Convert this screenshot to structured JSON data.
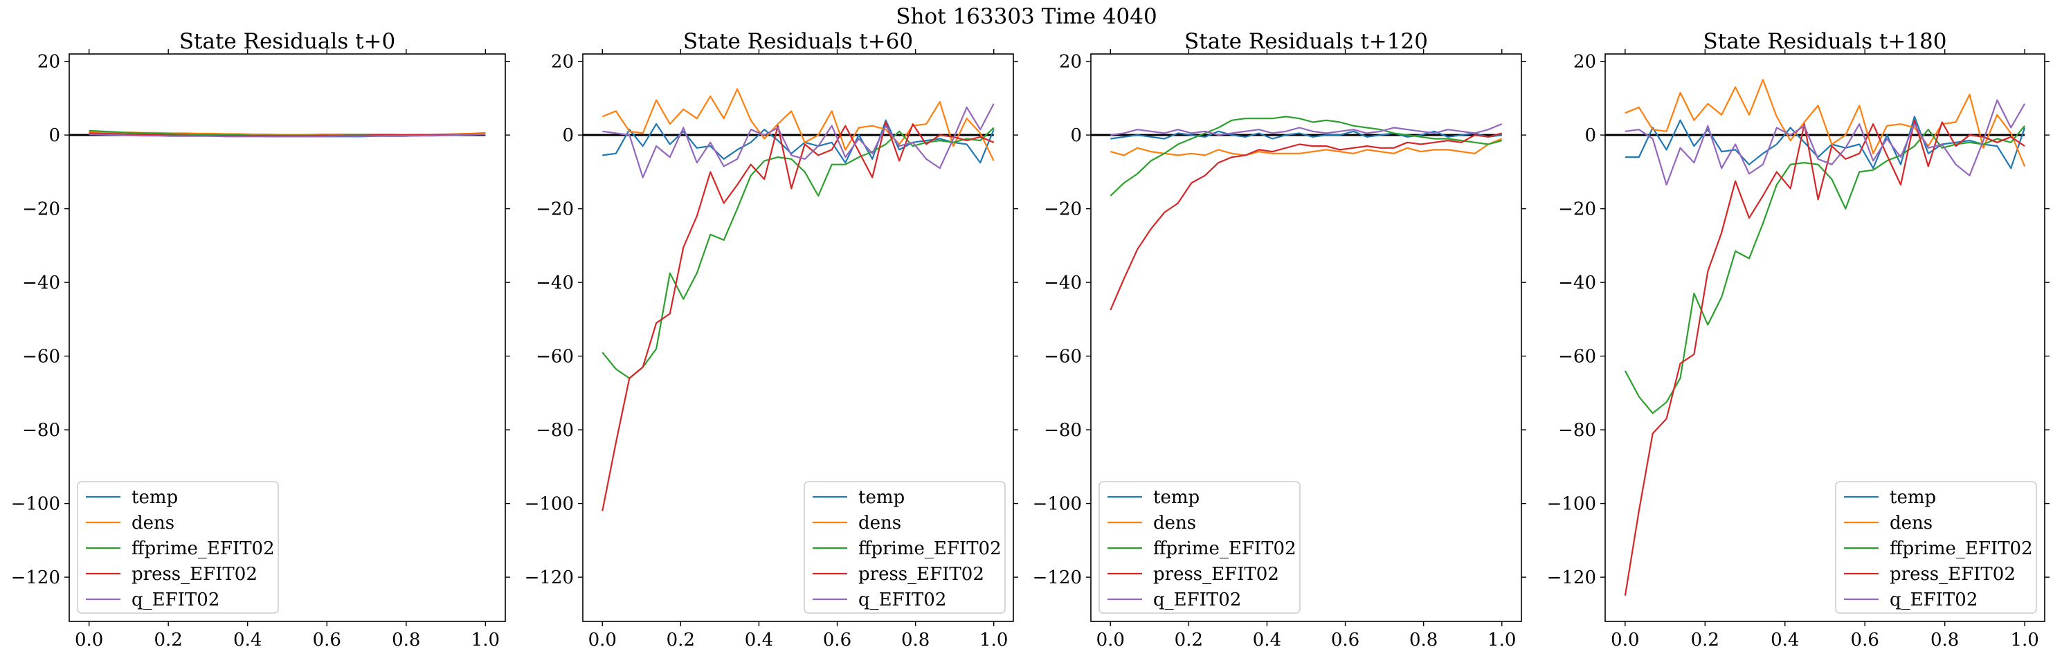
{
  "figure": {
    "suptitle": "Shot 163303   Time 4040"
  },
  "chart_data": [
    {
      "type": "line",
      "title": "State Residuals t+0",
      "xlabel": "",
      "ylabel": "",
      "xlim": [
        -0.05,
        1.05
      ],
      "ylim": [
        -132,
        22
      ],
      "xticks": [
        0.0,
        0.2,
        0.4,
        0.6,
        0.8,
        1.0
      ],
      "yticks": [
        20,
        0,
        -20,
        -40,
        -60,
        -80,
        -100,
        -120
      ],
      "grid": false,
      "legend": "lower-left",
      "x": [
        0.0,
        0.0345,
        0.069,
        0.1034,
        0.1379,
        0.1724,
        0.2069,
        0.2414,
        0.2759,
        0.3103,
        0.3448,
        0.3793,
        0.4138,
        0.4483,
        0.4828,
        0.5172,
        0.5517,
        0.5862,
        0.6207,
        0.6552,
        0.6897,
        0.7241,
        0.7586,
        0.7931,
        0.8276,
        0.8621,
        0.8966,
        0.931,
        0.9655,
        1.0
      ],
      "series": [
        {
          "name": "temp",
          "color": "#1f77b4",
          "values": [
            0.3,
            0.2,
            0.1,
            0.0,
            -0.1,
            -0.1,
            -0.2,
            -0.2,
            -0.2,
            -0.3,
            -0.3,
            -0.3,
            -0.3,
            -0.4,
            -0.4,
            -0.4,
            -0.4,
            -0.4,
            -0.4,
            -0.4,
            -0.4,
            -0.3,
            -0.3,
            -0.3,
            -0.2,
            -0.2,
            -0.1,
            0.0,
            0.1,
            0.2
          ]
        },
        {
          "name": "dens",
          "color": "#ff7f0e",
          "values": [
            0.9,
            0.8,
            0.7,
            0.7,
            0.6,
            0.6,
            0.5,
            0.5,
            0.4,
            0.4,
            0.3,
            0.3,
            0.2,
            0.2,
            0.1,
            0.1,
            0.1,
            0.0,
            0.0,
            0.0,
            0.0,
            0.0,
            0.0,
            0.1,
            0.1,
            0.1,
            0.2,
            0.3,
            0.4,
            0.6
          ]
        },
        {
          "name": "ffprime_EFIT02",
          "color": "#2ca02c",
          "values": [
            1.2,
            1.0,
            0.8,
            0.6,
            0.5,
            0.4,
            0.3,
            0.2,
            0.1,
            0.1,
            0.0,
            0.0,
            -0.1,
            -0.1,
            -0.1,
            -0.1,
            -0.1,
            -0.1,
            -0.1,
            0.0,
            0.0,
            0.0,
            0.0,
            0.0,
            0.1,
            0.1,
            0.1,
            0.1,
            0.2,
            0.2
          ]
        },
        {
          "name": "press_EFIT02",
          "color": "#d62728",
          "values": [
            0.5,
            0.4,
            0.3,
            0.2,
            0.1,
            0.0,
            -0.1,
            -0.1,
            -0.2,
            -0.2,
            -0.2,
            -0.2,
            -0.2,
            -0.2,
            -0.2,
            -0.2,
            -0.2,
            -0.1,
            -0.1,
            -0.1,
            -0.1,
            0.0,
            0.0,
            0.0,
            0.0,
            0.1,
            0.1,
            0.1,
            0.2,
            0.2
          ]
        },
        {
          "name": "q_EFIT02",
          "color": "#9467bd",
          "values": [
            0.2,
            0.1,
            0.0,
            -0.1,
            -0.2,
            -0.2,
            -0.3,
            -0.3,
            -0.3,
            -0.3,
            -0.4,
            -0.4,
            -0.4,
            -0.4,
            -0.4,
            -0.4,
            -0.4,
            -0.4,
            -0.3,
            -0.3,
            -0.3,
            -0.3,
            -0.2,
            -0.2,
            -0.2,
            -0.1,
            -0.1,
            0.0,
            0.1,
            0.2
          ]
        }
      ],
      "reference_line": {
        "y": 0,
        "color": "#000000"
      }
    },
    {
      "type": "line",
      "title": "State Residuals t+60",
      "xlabel": "",
      "ylabel": "",
      "xlim": [
        -0.05,
        1.05
      ],
      "ylim": [
        -132,
        22
      ],
      "xticks": [
        0.0,
        0.2,
        0.4,
        0.6,
        0.8,
        1.0
      ],
      "yticks": [
        20,
        0,
        -20,
        -40,
        -60,
        -80,
        -100,
        -120
      ],
      "grid": false,
      "legend": "lower-right",
      "x": [
        0.0,
        0.0345,
        0.069,
        0.1034,
        0.1379,
        0.1724,
        0.2069,
        0.2414,
        0.2759,
        0.3103,
        0.3448,
        0.3793,
        0.4138,
        0.4483,
        0.4828,
        0.5172,
        0.5517,
        0.5862,
        0.6207,
        0.6552,
        0.6897,
        0.7241,
        0.7586,
        0.7931,
        0.8276,
        0.8621,
        0.8966,
        0.931,
        0.9655,
        1.0
      ],
      "series": [
        {
          "name": "temp",
          "color": "#1f77b4",
          "values": [
            -5.5,
            -5.0,
            1.5,
            -3.0,
            3.0,
            -2.5,
            1.0,
            -3.5,
            -3.0,
            -6.5,
            -4.0,
            -2.0,
            1.5,
            -1.5,
            -5.0,
            -2.0,
            -3.0,
            -2.0,
            -7.5,
            0.0,
            -6.5,
            4.0,
            -4.0,
            -2.0,
            -1.5,
            -1.0,
            -2.0,
            -2.5,
            -7.5,
            1.5
          ]
        },
        {
          "name": "dens",
          "color": "#ff7f0e",
          "values": [
            5.0,
            6.5,
            1.0,
            0.5,
            9.5,
            3.0,
            7.0,
            4.5,
            10.5,
            4.5,
            12.5,
            4.0,
            -1.0,
            3.0,
            6.5,
            -2.0,
            0.0,
            6.5,
            -4.0,
            2.0,
            2.5,
            1.5,
            -2.5,
            2.5,
            3.0,
            9.0,
            -3.0,
            4.5,
            0.5,
            -7.0
          ]
        },
        {
          "name": "ffprime_EFIT02",
          "color": "#2ca02c",
          "values": [
            -59.0,
            -63.5,
            -66.0,
            -63.0,
            -58.0,
            -37.5,
            -44.5,
            -37.5,
            -27.0,
            -28.5,
            -20.0,
            -11.0,
            -7.0,
            -6.0,
            -6.5,
            -10.0,
            -16.5,
            -8.0,
            -8.0,
            -6.0,
            -4.5,
            -2.5,
            1.0,
            -3.0,
            -2.0,
            -1.5,
            -2.0,
            -1.0,
            -1.5,
            2.0
          ]
        },
        {
          "name": "press_EFIT02",
          "color": "#d62728",
          "values": [
            -102.0,
            -83.5,
            -66.0,
            -63.0,
            -51.0,
            -48.5,
            -30.5,
            -22.0,
            -10.0,
            -18.5,
            -13.5,
            -8.0,
            -12.0,
            2.5,
            -14.5,
            -2.5,
            -5.5,
            -4.0,
            2.5,
            -4.5,
            -11.5,
            3.5,
            -7.0,
            3.0,
            -2.5,
            0.0,
            -0.5,
            -1.5,
            -0.5,
            -2.0
          ]
        },
        {
          "name": "q_EFIT02",
          "color": "#9467bd",
          "values": [
            1.0,
            0.5,
            0.0,
            -11.5,
            -3.0,
            -6.0,
            2.0,
            -7.5,
            -2.0,
            -8.5,
            -6.5,
            1.5,
            0.0,
            2.0,
            -5.5,
            -6.5,
            -3.0,
            2.5,
            -6.0,
            -1.0,
            -5.0,
            2.5,
            -3.0,
            -2.0,
            -6.5,
            -9.0,
            -1.0,
            7.5,
            1.5,
            8.5
          ]
        }
      ],
      "reference_line": {
        "y": 0,
        "color": "#000000"
      }
    },
    {
      "type": "line",
      "title": "State Residuals t+120",
      "xlabel": "",
      "ylabel": "",
      "xlim": [
        -0.05,
        1.05
      ],
      "ylim": [
        -132,
        22
      ],
      "xticks": [
        0.0,
        0.2,
        0.4,
        0.6,
        0.8,
        1.0
      ],
      "yticks": [
        20,
        0,
        -20,
        -40,
        -60,
        -80,
        -100,
        -120
      ],
      "grid": false,
      "legend": "lower-left",
      "x": [
        0.0,
        0.0345,
        0.069,
        0.1034,
        0.1379,
        0.1724,
        0.2069,
        0.2414,
        0.2759,
        0.3103,
        0.3448,
        0.3793,
        0.4138,
        0.4483,
        0.4828,
        0.5172,
        0.5517,
        0.5862,
        0.6207,
        0.6552,
        0.6897,
        0.7241,
        0.7586,
        0.7931,
        0.8276,
        0.8621,
        0.8966,
        0.931,
        0.9655,
        1.0
      ],
      "series": [
        {
          "name": "temp",
          "color": "#1f77b4",
          "values": [
            -1.0,
            -0.5,
            0.0,
            -0.5,
            -1.0,
            0.5,
            0.0,
            -0.5,
            1.0,
            0.0,
            -0.5,
            0.5,
            -1.0,
            0.0,
            0.5,
            -0.5,
            0.0,
            0.0,
            1.0,
            -0.5,
            0.0,
            0.5,
            -0.5,
            0.0,
            1.0,
            -0.5,
            0.0,
            0.5,
            -0.5,
            0.0
          ]
        },
        {
          "name": "dens",
          "color": "#ff7f0e",
          "values": [
            -4.5,
            -5.5,
            -3.5,
            -4.5,
            -5.0,
            -5.5,
            -5.0,
            -5.5,
            -4.0,
            -5.0,
            -5.5,
            -4.5,
            -5.0,
            -5.0,
            -5.0,
            -4.5,
            -4.0,
            -4.5,
            -5.0,
            -4.0,
            -4.5,
            -5.0,
            -3.5,
            -4.5,
            -4.0,
            -4.0,
            -4.5,
            -5.0,
            -2.5,
            -1.0
          ]
        },
        {
          "name": "ffprime_EFIT02",
          "color": "#2ca02c",
          "values": [
            -16.5,
            -13.0,
            -10.5,
            -7.0,
            -5.0,
            -2.5,
            -1.0,
            0.5,
            2.0,
            4.0,
            4.5,
            4.5,
            4.5,
            5.0,
            4.5,
            3.5,
            4.0,
            3.5,
            2.5,
            2.0,
            1.5,
            0.5,
            0.0,
            -0.5,
            -1.0,
            -1.0,
            -1.5,
            -2.0,
            -2.5,
            -1.5
          ]
        },
        {
          "name": "press_EFIT02",
          "color": "#d62728",
          "values": [
            -47.5,
            -39.0,
            -31.0,
            -25.5,
            -21.0,
            -18.5,
            -13.0,
            -11.0,
            -7.5,
            -6.0,
            -5.5,
            -4.0,
            -4.5,
            -3.5,
            -2.5,
            -3.0,
            -3.0,
            -4.0,
            -3.5,
            -3.0,
            -3.5,
            -3.5,
            -2.0,
            -2.5,
            -2.0,
            -1.5,
            -2.0,
            0.0,
            -0.5,
            0.5
          ]
        },
        {
          "name": "q_EFIT02",
          "color": "#9467bd",
          "values": [
            0.0,
            0.5,
            1.5,
            1.0,
            0.5,
            1.5,
            0.5,
            1.0,
            0.0,
            0.5,
            1.0,
            1.5,
            0.5,
            1.0,
            2.0,
            1.0,
            0.5,
            1.0,
            1.5,
            0.5,
            1.0,
            2.0,
            1.5,
            1.0,
            0.5,
            1.5,
            1.0,
            0.5,
            1.5,
            3.0
          ]
        }
      ],
      "reference_line": {
        "y": 0,
        "color": "#000000"
      }
    },
    {
      "type": "line",
      "title": "State Residuals t+180",
      "xlabel": "",
      "ylabel": "",
      "xlim": [
        -0.05,
        1.05
      ],
      "ylim": [
        -132,
        22
      ],
      "xticks": [
        0.0,
        0.2,
        0.4,
        0.6,
        0.8,
        1.0
      ],
      "yticks": [
        20,
        0,
        -20,
        -40,
        -60,
        -80,
        -100,
        -120
      ],
      "grid": false,
      "legend": "lower-right",
      "x": [
        0.0,
        0.0345,
        0.069,
        0.1034,
        0.1379,
        0.1724,
        0.2069,
        0.2414,
        0.2759,
        0.3103,
        0.3448,
        0.3793,
        0.4138,
        0.4483,
        0.4828,
        0.5172,
        0.5517,
        0.5862,
        0.6207,
        0.6552,
        0.6897,
        0.7241,
        0.7586,
        0.7931,
        0.8276,
        0.8621,
        0.8966,
        0.931,
        0.9655,
        1.0
      ],
      "series": [
        {
          "name": "temp",
          "color": "#1f77b4",
          "values": [
            -6.0,
            -6.0,
            2.0,
            -4.0,
            4.0,
            -3.0,
            1.5,
            -4.5,
            -4.0,
            -8.0,
            -5.0,
            -2.5,
            2.0,
            -2.0,
            -6.0,
            -2.5,
            -3.5,
            -2.5,
            -9.0,
            0.0,
            -8.0,
            5.0,
            -5.0,
            -2.5,
            -2.0,
            -1.5,
            -2.5,
            -3.0,
            -9.0,
            2.0
          ]
        },
        {
          "name": "dens",
          "color": "#ff7f0e",
          "values": [
            6.0,
            7.5,
            1.5,
            1.0,
            11.5,
            4.0,
            8.5,
            5.5,
            13.0,
            5.5,
            15.0,
            5.0,
            -1.5,
            3.5,
            8.0,
            -2.5,
            0.0,
            8.0,
            -5.0,
            2.5,
            3.0,
            2.0,
            -3.0,
            3.0,
            3.5,
            11.0,
            -3.5,
            5.5,
            0.5,
            -8.5
          ]
        },
        {
          "name": "ffprime_EFIT02",
          "color": "#2ca02c",
          "values": [
            -64.0,
            -71.0,
            -75.5,
            -72.5,
            -66.0,
            -43.0,
            -51.5,
            -44.0,
            -31.5,
            -33.5,
            -24.0,
            -13.5,
            -8.0,
            -7.5,
            -8.0,
            -12.0,
            -20.0,
            -10.0,
            -9.5,
            -7.0,
            -5.5,
            -3.0,
            1.5,
            -3.5,
            -2.5,
            -2.0,
            -2.5,
            -1.0,
            -2.0,
            2.5
          ]
        },
        {
          "name": "press_EFIT02",
          "color": "#d62728",
          "values": [
            -125.0,
            -102.0,
            -81.0,
            -77.0,
            -62.0,
            -59.5,
            -37.0,
            -26.5,
            -12.5,
            -22.5,
            -16.5,
            -10.0,
            -14.5,
            3.0,
            -17.5,
            -3.0,
            -6.5,
            -5.0,
            3.0,
            -5.5,
            -13.5,
            4.0,
            -8.5,
            3.5,
            -3.0,
            0.0,
            -0.5,
            -2.0,
            -0.5,
            -3.0
          ]
        },
        {
          "name": "q_EFIT02",
          "color": "#9467bd",
          "values": [
            1.0,
            1.5,
            -1.0,
            -13.5,
            -3.5,
            -7.5,
            2.5,
            -9.0,
            -2.5,
            -10.5,
            -8.0,
            2.0,
            0.0,
            2.5,
            -6.5,
            -8.0,
            -3.5,
            3.0,
            -7.0,
            -1.0,
            -6.0,
            3.0,
            -3.5,
            -2.5,
            -8.0,
            -11.0,
            -1.5,
            9.5,
            2.0,
            8.5
          ]
        }
      ],
      "reference_line": {
        "y": 0,
        "color": "#000000"
      }
    }
  ]
}
